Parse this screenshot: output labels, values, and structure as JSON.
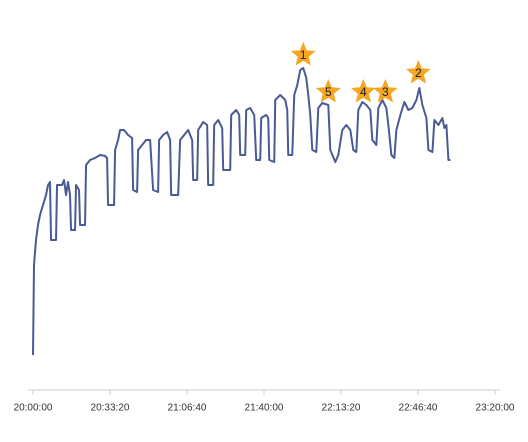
{
  "chart_data": {
    "type": "line",
    "x": [
      0,
      26,
      78,
      130,
      182,
      260,
      338,
      390,
      442,
      468,
      598,
      624,
      754,
      806,
      858,
      910,
      962,
      988,
      1092,
      1118,
      1196,
      1222,
      1352,
      1378,
      1482,
      1612,
      1742,
      1872,
      1924,
      1950,
      2106,
      2132,
      2210,
      2262,
      2366,
      2470,
      2574,
      2600,
      2704,
      2730,
      2834,
      2938,
      3042,
      3120,
      3250,
      3276,
      3380,
      3484,
      3562,
      3588,
      3770,
      3822,
      3926,
      4030,
      4134,
      4160,
      4264,
      4290,
      4420,
      4524,
      4550,
      4680,
      4706,
      4810,
      4914,
      4940,
      5122,
      5148,
      5278,
      5356,
      5382,
      5512,
      5538,
      5642,
      5746,
      5798,
      5902,
      5928,
      6058,
      6110,
      6136,
      6266,
      6292,
      6422,
      6552,
      6604,
      6630,
      6734,
      6786,
      6864,
      6942,
      7020,
      7098,
      7150,
      7202,
      7254,
      7358,
      7410,
      7514,
      7670,
      7722,
      7852,
      7930,
      8034,
      8138,
      8242,
      8320,
      8398,
      8450,
      8554,
      8658,
      8762,
      8814,
      8918,
      8970,
      9074,
      9178,
      9230,
      9308,
      9386,
      9438,
      9542,
      9646,
      9750,
      9854,
      9958,
      10036,
      10114,
      10218,
      10270,
      10374,
      10426,
      10530,
      10634,
      10686,
      10738,
      10790,
      10842
    ],
    "series": [
      {
        "color": "#4a5a94",
        "values": [
          35,
          125,
          150,
          165,
          175,
          185,
          195,
          205,
          208,
          150,
          150,
          205,
          205,
          210,
          195,
          208,
          195,
          160,
          160,
          205,
          200,
          165,
          165,
          225,
          230,
          232,
          235,
          234,
          232,
          185,
          185,
          240,
          250,
          260,
          260,
          255,
          252,
          200,
          198,
          240,
          245,
          250,
          250,
          200,
          198,
          250,
          255,
          258,
          250,
          195,
          195,
          250,
          255,
          260,
          250,
          210,
          210,
          260,
          268,
          265,
          205,
          205,
          265,
          270,
          262,
          220,
          220,
          275,
          280,
          275,
          235,
          235,
          280,
          282,
          275,
          230,
          230,
          272,
          275,
          272,
          230,
          228,
          290,
          295,
          290,
          280,
          235,
          235,
          295,
          305,
          320,
          322,
          312,
          295,
          275,
          240,
          238,
          282,
          287,
          285,
          240,
          228,
          235,
          260,
          265,
          260,
          240,
          238,
          280,
          288,
          285,
          280,
          250,
          245,
          282,
          290,
          282,
          265,
          235,
          232,
          260,
          275,
          288,
          280,
          282,
          290,
          302,
          285,
          272,
          240,
          238,
          270,
          265,
          272,
          262,
          265,
          230,
          230
        ]
      }
    ],
    "annotations": [
      {
        "label": "1",
        "x": 7020,
        "y": 335
      },
      {
        "label": "2",
        "x": 10010,
        "y": 317
      },
      {
        "label": "3",
        "x": 9152,
        "y": 298
      },
      {
        "label": "4",
        "x": 8580,
        "y": 298
      },
      {
        "label": "5",
        "x": 7670,
        "y": 298
      }
    ],
    "annotation_color": "#f5a623",
    "xlim": [
      0,
      12000
    ],
    "xticks": [
      {
        "value": 0,
        "label": "20:00:00"
      },
      {
        "value": 2000,
        "label": "20:33:20"
      },
      {
        "value": 4000,
        "label": "21:06:40"
      },
      {
        "value": 6000,
        "label": "21:40:00"
      },
      {
        "value": 8000,
        "label": "22:13:20"
      },
      {
        "value": 10000,
        "label": "22:46:40"
      },
      {
        "value": 12000,
        "label": "23:20:00"
      }
    ],
    "ylim": [
      0,
      350
    ]
  }
}
